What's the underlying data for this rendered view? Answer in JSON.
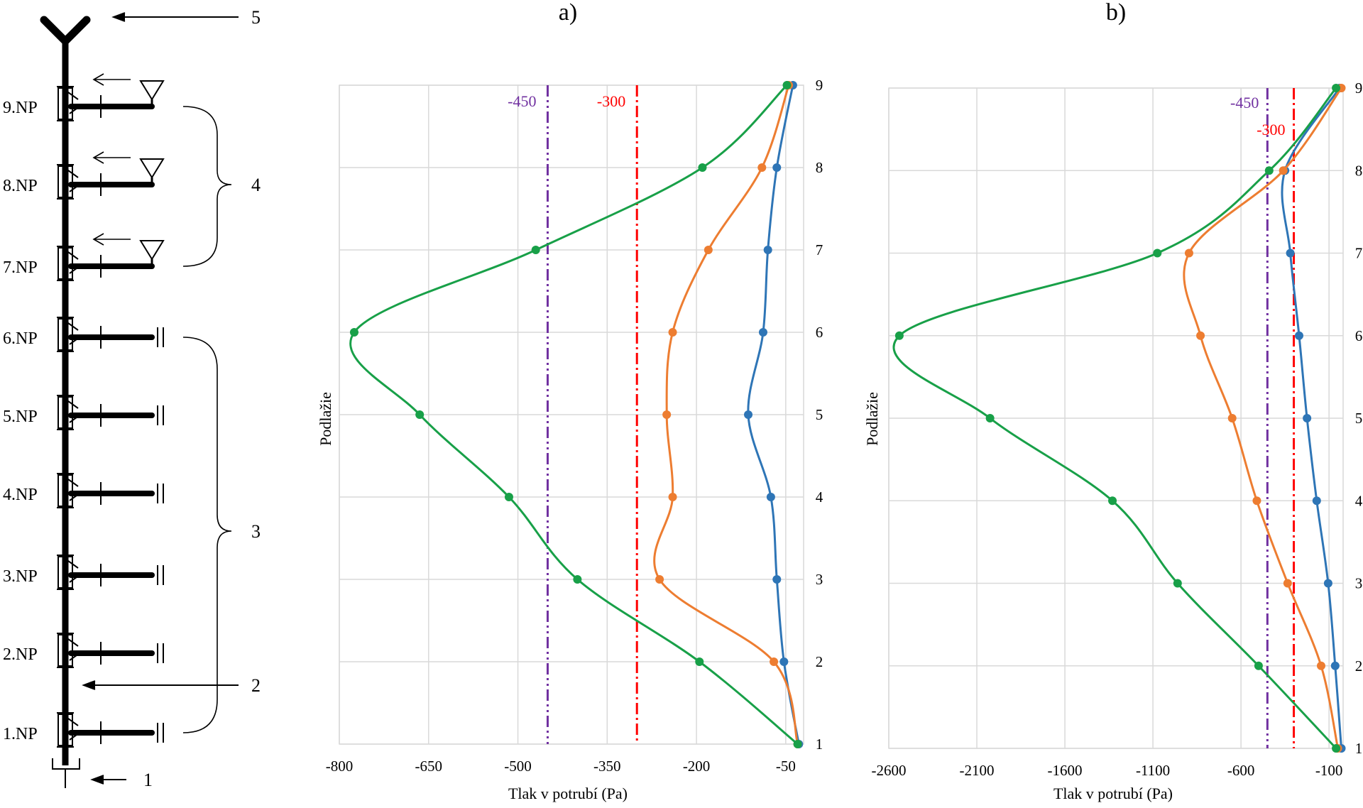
{
  "schematic": {
    "floors": [
      "9.NP",
      "8.NP",
      "7.NP",
      "6.NP",
      "5.NP",
      "4.NP",
      "3.NP",
      "2.NP",
      "1.NP"
    ],
    "callouts": [
      "1",
      "2",
      "3",
      "4",
      "5"
    ]
  },
  "chart_data": [
    {
      "type": "line",
      "panel_label": "a)",
      "xlabel": "Tlak v potrubí (Pa)",
      "ylabel": "Podlažie",
      "xlim": [
        -800,
        -20
      ],
      "ylim": [
        1,
        9
      ],
      "x_ticks": [
        -800,
        -650,
        -500,
        -350,
        -200,
        -50
      ],
      "y_ticks": [
        1,
        2,
        3,
        4,
        5,
        6,
        7,
        8,
        9
      ],
      "grid": true,
      "reference_lines": [
        {
          "x": -450,
          "label": "-450",
          "color": "#7030A0"
        },
        {
          "x": -300,
          "label": "-300",
          "color": "#FF0000"
        }
      ],
      "series": [
        {
          "color": "#2E75B6",
          "points": [
            {
              "x": -28,
              "y": 1
            },
            {
              "x": -53,
              "y": 2
            },
            {
              "x": -65,
              "y": 3
            },
            {
              "x": -75,
              "y": 4
            },
            {
              "x": -113,
              "y": 5
            },
            {
              "x": -88,
              "y": 6
            },
            {
              "x": -80,
              "y": 7
            },
            {
              "x": -65,
              "y": 8
            },
            {
              "x": -38,
              "y": 9
            }
          ]
        },
        {
          "color": "#ED7D31",
          "points": [
            {
              "x": -30,
              "y": 1
            },
            {
              "x": -70,
              "y": 2
            },
            {
              "x": -262,
              "y": 3
            },
            {
              "x": -240,
              "y": 4
            },
            {
              "x": -250,
              "y": 5
            },
            {
              "x": -240,
              "y": 6
            },
            {
              "x": -180,
              "y": 7
            },
            {
              "x": -90,
              "y": 8
            },
            {
              "x": -45,
              "y": 9
            }
          ]
        },
        {
          "color": "#18A048",
          "points": [
            {
              "x": -30,
              "y": 1
            },
            {
              "x": -195,
              "y": 2
            },
            {
              "x": -400,
              "y": 3
            },
            {
              "x": -515,
              "y": 4
            },
            {
              "x": -665,
              "y": 5
            },
            {
              "x": -775,
              "y": 6
            },
            {
              "x": -470,
              "y": 7
            },
            {
              "x": -190,
              "y": 8
            },
            {
              "x": -48,
              "y": 9
            }
          ]
        }
      ]
    },
    {
      "type": "line",
      "panel_label": "b)",
      "xlabel": "Tlak v potrubí (Pa)",
      "ylabel": "Podlažie",
      "xlim": [
        -2600,
        -20
      ],
      "ylim": [
        1,
        9
      ],
      "x_ticks": [
        -2600,
        -2100,
        -1600,
        -1100,
        -600,
        -100
      ],
      "y_ticks": [
        1,
        2,
        3,
        4,
        5,
        6,
        7,
        8,
        9
      ],
      "grid": true,
      "reference_lines": [
        {
          "x": -450,
          "label": "-450",
          "color": "#7030A0"
        },
        {
          "x": -300,
          "label": "-300",
          "color": "#FF0000"
        }
      ],
      "series": [
        {
          "color": "#2E75B6",
          "points": [
            {
              "x": -30,
              "y": 1
            },
            {
              "x": -65,
              "y": 2
            },
            {
              "x": -105,
              "y": 3
            },
            {
              "x": -170,
              "y": 4
            },
            {
              "x": -225,
              "y": 5
            },
            {
              "x": -270,
              "y": 6
            },
            {
              "x": -320,
              "y": 7
            },
            {
              "x": -350,
              "y": 8
            },
            {
              "x": -40,
              "y": 9
            }
          ]
        },
        {
          "color": "#ED7D31",
          "points": [
            {
              "x": -50,
              "y": 1
            },
            {
              "x": -145,
              "y": 2
            },
            {
              "x": -335,
              "y": 3
            },
            {
              "x": -510,
              "y": 4
            },
            {
              "x": -650,
              "y": 5
            },
            {
              "x": -830,
              "y": 6
            },
            {
              "x": -895,
              "y": 7
            },
            {
              "x": -360,
              "y": 8
            },
            {
              "x": -30,
              "y": 9
            }
          ]
        },
        {
          "color": "#18A048",
          "points": [
            {
              "x": -60,
              "y": 1
            },
            {
              "x": -500,
              "y": 2
            },
            {
              "x": -960,
              "y": 3
            },
            {
              "x": -1330,
              "y": 4
            },
            {
              "x": -2025,
              "y": 5
            },
            {
              "x": -2540,
              "y": 6
            },
            {
              "x": -1075,
              "y": 7
            },
            {
              "x": -440,
              "y": 8
            },
            {
              "x": -60,
              "y": 9
            }
          ]
        }
      ]
    }
  ]
}
